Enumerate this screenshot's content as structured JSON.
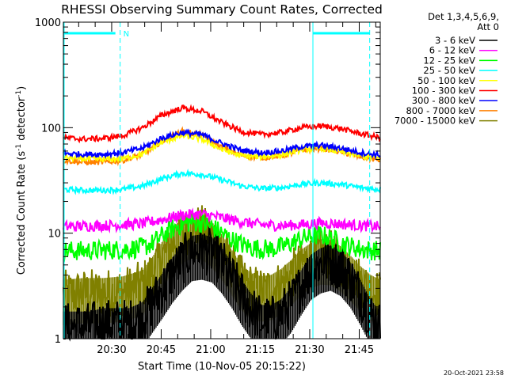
{
  "page": {
    "footer_date": "20-Oct-2021 23:58"
  },
  "chart_data": {
    "type": "line",
    "title": "RHESSI Observing Summary Count Rates, Corrected",
    "xlabel": "Start Time (10-Nov-05 20:15:22)",
    "ylabel_main": "Corrected Count Rate (s",
    "ylabel_sup1": "-1",
    "ylabel_mid": " detector",
    "ylabel_sup2": "-1",
    "ylabel_end": ")",
    "y_scale": "log",
    "ylim": [
      1,
      1000
    ],
    "xlim_minutes_after_start": [
      0,
      96
    ],
    "x_ticks": [
      "20:30",
      "20:45",
      "21:00",
      "21:15",
      "21:30",
      "21:45"
    ],
    "y_ticks": [
      "1",
      "10",
      "100",
      "1000"
    ],
    "legend": {
      "placement": "right",
      "header_line1": "Det 1,3,4,5,6,9,",
      "header_line2": "Att 0",
      "entries": [
        {
          "label": "3 - 6 keV",
          "color": "#000000"
        },
        {
          "label": "6 - 12 keV",
          "color": "#ff00ff"
        },
        {
          "label": "12 - 25 keV",
          "color": "#00ff00"
        },
        {
          "label": "25 - 50 keV",
          "color": "#00ffff"
        },
        {
          "label": "50 - 100 keV",
          "color": "#ffff00"
        },
        {
          "label": "100 - 300 keV",
          "color": "#ff0000"
        },
        {
          "label": "300 - 800 keV",
          "color": "#0000ff"
        },
        {
          "label": "800 - 7000 keV",
          "color": "#ff8000"
        },
        {
          "label": "7000 - 15000 keV",
          "color": "#808000"
        }
      ]
    },
    "annotations": {
      "n_label": "N",
      "night_color": "#00ffff"
    },
    "series": [
      {
        "color": "#000000",
        "x": [
          0,
          4,
          8,
          12,
          16,
          20,
          24,
          27,
          30,
          33,
          36,
          39,
          42,
          45,
          48,
          51,
          54,
          57,
          60,
          63,
          66,
          69,
          72,
          75,
          78,
          81,
          84,
          87,
          90,
          93,
          96
        ],
        "y": [
          1.3,
          1.3,
          1.3,
          1.4,
          1.4,
          1.4,
          1.6,
          2.2,
          3.0,
          4.2,
          5.5,
          6.8,
          7.0,
          6.6,
          5.2,
          3.8,
          2.6,
          1.9,
          1.5,
          1.5,
          1.7,
          2.2,
          3.2,
          4.5,
          5.2,
          5.5,
          4.9,
          3.8,
          2.6,
          1.7,
          1.3
        ]
      },
      {
        "color": "#ff00ff",
        "x": [
          0,
          6,
          12,
          18,
          24,
          30,
          36,
          42,
          48,
          54,
          60,
          66,
          72,
          78,
          84,
          90,
          96
        ],
        "y": [
          11.5,
          11.7,
          11.8,
          12.0,
          12.3,
          13.5,
          14.8,
          15.2,
          14.0,
          12.8,
          12.0,
          11.8,
          12.0,
          12.5,
          12.2,
          11.8,
          11.5
        ]
      },
      {
        "color": "#00ff00",
        "x": [
          0,
          6,
          12,
          18,
          24,
          27,
          30,
          33,
          36,
          39,
          42,
          45,
          48,
          51,
          54,
          57,
          60,
          63,
          66,
          69,
          72,
          75,
          78,
          81,
          84,
          87,
          90,
          93,
          96
        ],
        "y": [
          6.8,
          6.8,
          6.9,
          7.0,
          7.3,
          8.0,
          9.5,
          11.0,
          12.2,
          12.8,
          12.5,
          11.5,
          10.0,
          8.7,
          7.8,
          7.3,
          7.1,
          7.1,
          7.4,
          8.0,
          8.8,
          9.4,
          9.6,
          9.0,
          8.1,
          7.5,
          7.1,
          6.9,
          6.8
        ]
      },
      {
        "color": "#00ffff",
        "x": [
          0,
          6,
          12,
          18,
          24,
          30,
          36,
          42,
          48,
          54,
          60,
          66,
          72,
          78,
          84,
          90,
          96
        ],
        "y": [
          26,
          25.5,
          25.5,
          26,
          28,
          33,
          37,
          36,
          32,
          28,
          26.5,
          27,
          29,
          30,
          29,
          27,
          26
        ]
      },
      {
        "color": "#ffff00",
        "x": [
          0,
          6,
          12,
          18,
          24,
          30,
          36,
          42,
          48,
          54,
          60,
          66,
          72,
          78,
          84,
          90,
          96
        ],
        "y": [
          52,
          51,
          50,
          51,
          56,
          73,
          84,
          78,
          62,
          54,
          53,
          55,
          62,
          64,
          59,
          54,
          51
        ]
      },
      {
        "color": "#ff0000",
        "x": [
          0,
          6,
          12,
          18,
          24,
          30,
          36,
          42,
          48,
          54,
          60,
          66,
          72,
          78,
          84,
          90,
          96
        ],
        "y": [
          80,
          78,
          79,
          84,
          100,
          132,
          154,
          143,
          112,
          92,
          86,
          90,
          100,
          104,
          98,
          88,
          80
        ]
      },
      {
        "color": "#0000ff",
        "x": [
          0,
          6,
          12,
          18,
          24,
          30,
          36,
          42,
          48,
          54,
          60,
          66,
          72,
          78,
          84,
          90,
          96
        ],
        "y": [
          57,
          56,
          56,
          58,
          64,
          80,
          90,
          86,
          71,
          61,
          58,
          60,
          66,
          68,
          64,
          58,
          55
        ]
      },
      {
        "color": "#ff8000",
        "x": [
          0,
          6,
          12,
          18,
          24,
          30,
          36,
          42,
          48,
          54,
          60,
          66,
          72,
          78,
          84,
          90,
          96
        ],
        "y": [
          49,
          47,
          47,
          49,
          56,
          75,
          92,
          85,
          65,
          55,
          52,
          54,
          61,
          64,
          59,
          53,
          49
        ]
      },
      {
        "color": "#808000",
        "x": [
          0,
          6,
          12,
          18,
          24,
          27,
          30,
          33,
          36,
          39,
          42,
          45,
          48,
          51,
          54,
          57,
          60,
          63,
          66,
          69,
          72,
          75,
          78,
          81,
          84,
          87,
          90,
          93,
          96
        ],
        "y": [
          2.6,
          2.7,
          2.7,
          2.8,
          3.2,
          4.3,
          6.0,
          8.0,
          10.0,
          11.2,
          10.8,
          9.2,
          7.0,
          5.0,
          3.6,
          3.0,
          2.8,
          2.9,
          3.3,
          4.0,
          5.0,
          5.8,
          6.3,
          6.2,
          5.4,
          4.4,
          3.5,
          2.9,
          2.6
        ]
      }
    ]
  }
}
